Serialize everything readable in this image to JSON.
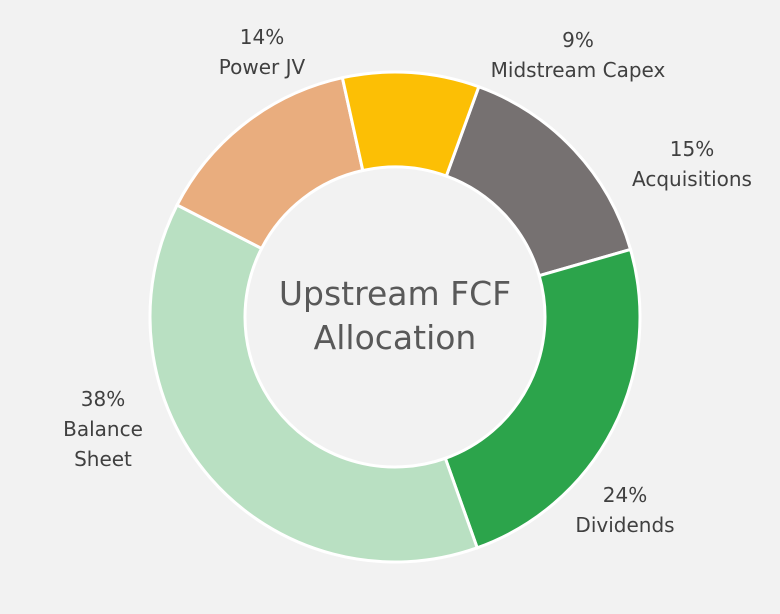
{
  "chart_data": {
    "type": "pie",
    "donut": true,
    "center_label": [
      "Upstream FCF",
      "Allocation"
    ],
    "slices": [
      {
        "label_lines": [
          "15%",
          "Acquisitions"
        ],
        "value": 15,
        "color": "#767171"
      },
      {
        "label_lines": [
          "24%",
          "Dividends"
        ],
        "value": 24,
        "color": "#2ca44b"
      },
      {
        "label_lines": [
          "38%",
          "Balance",
          "Sheet"
        ],
        "value": 38,
        "color": "#b9e0c2"
      },
      {
        "label_lines": [
          "14%",
          "Power JV"
        ],
        "value": 14,
        "color": "#e9ad7e"
      },
      {
        "label_lines": [
          "9%",
          "Midstream Capex"
        ],
        "value": 9,
        "color": "#fcbf05"
      }
    ],
    "legend": "none"
  }
}
